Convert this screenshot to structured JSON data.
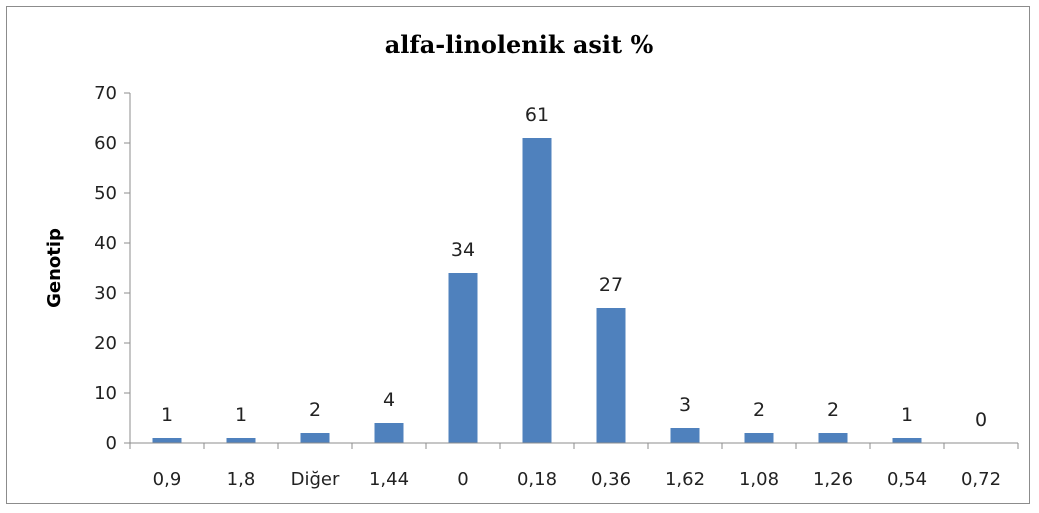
{
  "chart_data": {
    "type": "bar",
    "title": "alfa-linolenik asit %",
    "xlabel": "",
    "ylabel": "Genotip",
    "categories": [
      "0,9",
      "1,8",
      "Diğer",
      "1,44",
      "0",
      "0,18",
      "0,36",
      "1,62",
      "1,08",
      "1,26",
      "0,54",
      "0,72"
    ],
    "values": [
      1,
      1,
      2,
      4,
      34,
      61,
      27,
      3,
      2,
      2,
      1,
      0
    ],
    "data_labels": [
      "1",
      "1",
      "2",
      "4",
      "34",
      "61",
      "27",
      "3",
      "2",
      "2",
      "1",
      "0"
    ],
    "ylim": [
      0,
      70
    ],
    "yticks": [
      "0",
      "10",
      "20",
      "30",
      "40",
      "50",
      "60",
      "70"
    ],
    "grid": false,
    "legend": "none",
    "bar_color": "#4f81bd"
  }
}
